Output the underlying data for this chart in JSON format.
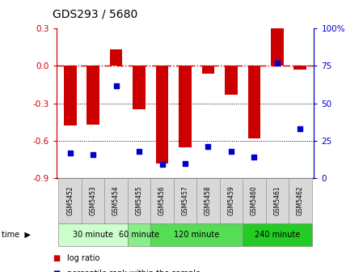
{
  "title": "GDS293 / 5680",
  "samples": [
    "GSM5452",
    "GSM5453",
    "GSM5454",
    "GSM5455",
    "GSM5456",
    "GSM5457",
    "GSM5458",
    "GSM5459",
    "GSM5460",
    "GSM5461",
    "GSM5462"
  ],
  "log_ratios": [
    -0.48,
    -0.47,
    0.13,
    -0.35,
    -0.78,
    -0.65,
    -0.06,
    -0.23,
    -0.58,
    0.3,
    -0.03
  ],
  "percentile_ranks": [
    17,
    16,
    62,
    18,
    9,
    10,
    21,
    18,
    14,
    77,
    33
  ],
  "ylim_left": [
    -0.9,
    0.3
  ],
  "ylim_right": [
    0,
    100
  ],
  "yticks_left": [
    -0.9,
    -0.6,
    -0.3,
    0.0,
    0.3
  ],
  "yticks_right": [
    0,
    25,
    50,
    75,
    100
  ],
  "bar_color": "#cc0000",
  "dot_color": "#0000cc",
  "dotted_lines": [
    -0.3,
    -0.6
  ],
  "time_groups": [
    {
      "label": "30 minute",
      "start": 0,
      "end": 2,
      "color": "#ccffcc"
    },
    {
      "label": "60 minute",
      "start": 3,
      "end": 3,
      "color": "#88ee88"
    },
    {
      "label": "120 minute",
      "start": 4,
      "end": 7,
      "color": "#55dd55"
    },
    {
      "label": "240 minute",
      "start": 8,
      "end": 10,
      "color": "#22cc22"
    }
  ],
  "background_color": "#ffffff"
}
